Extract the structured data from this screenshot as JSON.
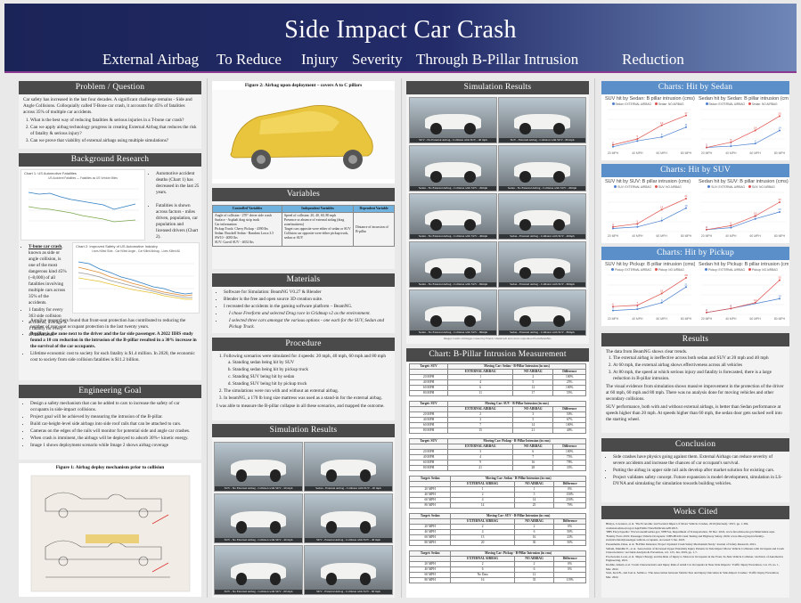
{
  "poster": {
    "title": "Side Impact Car Crash",
    "subtitle": [
      "External Airbag",
      "To Reduce",
      "Injury",
      "Severity",
      "Through B-Pillar Intrusion",
      "Reduction"
    ]
  },
  "problem": {
    "heading": "Problem / Question",
    "intro": "Car safety has increased in the last four decades. A significant challenge remains - Side and Angle Collisions. Colloquially called T-Bone car crash, it accounts for 45% of fatalities across 35% of multiple car accidents.",
    "items": [
      "What is the best way of reducing fatalities & serious injuries in a T-bone car crash?",
      "Can we apply airbag technology progress in creating External Airbag that reduces the risk of fatality & serious injury?",
      "Can we prove that viability of external airbags using multiple simulations?"
    ]
  },
  "background": {
    "heading": "Background Research",
    "chart1_title": "Chart 1: US Automotive Fatalities",
    "chart1_legend": "US Accident Fatalities — Fatalities as US Vehicle Miles",
    "chart2_title": "Chart 2: Improved Safety of US Automotive Industry",
    "chart2_legend": "Lives Killed Side - Car Killed Angle - Car Killed Airbag - Lives Killed All",
    "note1": "Automotive accident deaths (Chart 1) has decreased in the last 25 years.",
    "note2": "Fatalities is shown across factors - miles driven, population, car population and licensed drivers (Chart 2).",
    "tbone_lead": "T-bone car crash",
    "tbone_rest": ", known as side or angle collision, is one of the most dangerous kind 45% (~8,000) of all fatalities involving multiple cars across 35% of the accidents.",
    "cost": "1 fatality for every 363 side collision accidents, average is 1 fatality for every 478 accidents",
    "bullets": [
      "Autolive researchers found that front-seat protection has contributed to reducing the number of rear-seat occupant protection in the last twenty years.",
      "B-pillar is the zone next to the driver and the far side passenger. A 2022 IIHS study found a 10 cm reduction in the intrusion of the B-pillar resulted in a 30% increase in the survival of the car occupants.",
      "Lifetime economic cost to society for each fatality is $1.4 million. In 2020, the economic cost to society from side collision fatalities is $11.2 billion."
    ]
  },
  "goal": {
    "heading": "Engineering Goal",
    "items": [
      "Design a safety mechanism that can be added to cars to increase the safety of car occupants in side-impact collisions.",
      "Project goal will be achieved by measuring the intrusion of the B-pillar.",
      "Build car-height-level side airbags into side roof rails that can be attached to cars.",
      "Cameras on the edges of the rails will monitor for potential side and angle car crashes.",
      "When crash is imminent, the airbags will be deployed to adsorb 30%+ kinetic energy.",
      "Image 1 shows deployment scenario while Image 2 shows airbag coverage"
    ]
  },
  "fig1": {
    "caption": "Figure 1: Airbag deploy mechanism prior to collision"
  },
  "fig2": {
    "caption": "Figure 2: Airbag upon deployment – covers A to C pillars"
  },
  "variables": {
    "heading": "Variables",
    "headers": [
      "Controlled Variables",
      "Independent Variables",
      "Dependent Variable"
    ],
    "controlled": [
      "Angle of collision - 270° driver side crash",
      "Surface - Asphalt drag strip track",
      "Car information:",
      "Pickup Truck: Chevy Pickup - 4390 lbs",
      "Sedan: Bruckell Sedan - Random Lorca 3.5 SW10 - 4083 lbs",
      "SUV: Gavril SUV - 4652 lbs"
    ],
    "independent": [
      "Speed of collision: 20, 40, 60, 80 mph",
      "Presence or absence of external airbag (drag zone/mattress)",
      "Target cars opposite were either of sedan or SUV",
      "Collision car opposite were either pickup truck, sedan or SUV"
    ],
    "dependent": [
      "Distance of incursion of B-pillar"
    ]
  },
  "materials": {
    "heading": "Materials",
    "items": [
      "Software for Simulation: BeamNG V0.27 & Blender",
      "Blender is the free and open source 3D creation suite.",
      "I recreated the accidents in the gaming software platform – BeamNG.",
      "I chose Freeform and selected Drag race in Gridmap v2 as the environment.",
      "I selected three cars amongst the various options - one each for the SUV, Sedan and Pickup Truck."
    ]
  },
  "procedure": {
    "heading": "Procedure",
    "intro": "Following scenarios were simulated for 4 speeds: 20 mph, 40 mph, 60 mph and 80 mph",
    "subs": [
      "Standing sedan being hit by SUV",
      "Standing sedan being hit by pickup truck",
      "Standing SUV being hit by sedan",
      "Standing SUV being hit by pickup truck"
    ],
    "item2": "The simulations were run with and without an external airbag.",
    "item3": "In beamNG, a 170 lb long size mattress was used as a stand-in for the external airbag.",
    "closing": "I was able to measure the B-pillar collapse in all these scenarios, and mapped the outcome."
  },
  "sim_results": {
    "heading": "Simulation Results",
    "left_labels": [
      "SUV - No External Airbag - Collision with SUV - 20 mph",
      "Sedan - External Airbag - Collision with SUV - 20 mph",
      "SUV - No External Airbag - Collision with SUV - 40 mph",
      "SUV - External Airbag - Collision with SUV - 40 mph",
      "SUV - No External Airbag - Collision with SUV - 60 mph",
      "SUV - External Airbag - Collision with SUV - 60 mph"
    ],
    "right_labels": [
      "SUV - No External Airbag - Collision with SUV - 40 mph",
      "SUV - External Airbag - Collision with SUV - 80 mph",
      "Sedan - No External Airbag - Collision with SUV - 20mph",
      "Sedan - No External Airbag - Collision with SUV - 20mph",
      "Sedan - No External Airbag - Collision with SUV - 40mph",
      "Sedan - External Airbag - Collision with SUV - 40mph",
      "Sedan - No External Airbag - Collision with SUV - 60mph",
      "Sedan - External Airbag - Collision with SUV - 60mph",
      "Sedan - No External Airbag - Collision with SUV - 80mph",
      "Sedan - External Airbag - Collision with SUV - 80mph"
    ],
    "note": "Images Credit: all images created by Pranav Chaturvedi and can be reproduced from BeamNG."
  },
  "measurement": {
    "heading": "Chart: B-Pillar Intrusion Measurement",
    "cols": [
      "EXTERNAL AIRBAG",
      "NO AIRBAG",
      "Difference"
    ],
    "tables": [
      {
        "target": "Target: SUV",
        "moving": "Moving Car: Sedan - B-Pillar Intrusion (in cms)",
        "rows": [
          [
            "20 MPH",
            "1",
            "2",
            "100%"
          ],
          [
            "40 MPH",
            "4",
            "5",
            "25%"
          ],
          [
            "60 MPH",
            "6",
            "12",
            "100%"
          ],
          [
            "80 MPH",
            "11",
            "17",
            "55%"
          ]
        ]
      },
      {
        "target": "Target: SUV",
        "moving": "Moving Car: SUV - B-Pillar Intrusion (in cms)",
        "rows": [
          [
            "20 MPH",
            "2",
            "3",
            "50%"
          ],
          [
            "40 MPH",
            "3",
            "5",
            "67%"
          ],
          [
            "60 MPH",
            "7",
            "14",
            "100%"
          ],
          [
            "80 MPH",
            "15",
            "21",
            "40%"
          ]
        ]
      },
      {
        "target": "Target: SUV",
        "moving": "Moving Car: Pickup - B-Pillar Intrusion (in cms)",
        "rows": [
          [
            "20 MPH",
            "3",
            "6",
            "100%"
          ],
          [
            "40 MPH",
            "4",
            "7",
            "75%"
          ],
          [
            "60 MPH",
            "9",
            "16",
            "78%"
          ],
          [
            "80 MPH",
            "21",
            "28",
            "33%"
          ]
        ]
      },
      {
        "target": "Target: Sedan",
        "moving": "Moving Car: Sedan - B-Pillar Intrusion (in cms)",
        "rows": [
          [
            "20 MPH",
            "1",
            "1",
            "0%"
          ],
          [
            "40 MPH",
            "2",
            "5",
            "150%"
          ],
          [
            "60 MPH",
            "4",
            "14",
            "250%"
          ],
          [
            "80 MPH",
            "14",
            "25",
            "79%"
          ]
        ]
      },
      {
        "target": "Target: Sedan",
        "moving": "Moving Car: SUV - B-Pillar Intrusion (in cms)",
        "rows": [
          [
            "20 MPH",
            "2",
            "2",
            "0%"
          ],
          [
            "40 MPH",
            "4",
            "6",
            "50%"
          ],
          [
            "60 MPH",
            "13",
            "16",
            "23%"
          ],
          [
            "80 MPH",
            "20",
            "30",
            "50%"
          ]
        ]
      },
      {
        "target": "Target: Sedan",
        "moving": "Moving Car: Pickup - B-Pillar Intrusion (in cms)",
        "rows": [
          [
            "20 MPH",
            "2",
            "2",
            "0%"
          ],
          [
            "40 MPH",
            "6",
            "6",
            "0%"
          ],
          [
            "60 MPH",
            "No Data",
            "12",
            ""
          ],
          [
            "80 MPH",
            "16",
            "35",
            "119%"
          ]
        ]
      }
    ]
  },
  "charts_heads": [
    "Charts: Hit by Sedan",
    "Charts: Hit by SUV",
    "Charts: Hit by Pickup"
  ],
  "chart_data": [
    {
      "type": "line",
      "title": "SUV hit by Sedan: B pillar intrusion (cms)",
      "categories": [
        "20 MPH",
        "40 MPH",
        "60 MPH",
        "80 MPH"
      ],
      "series": [
        {
          "name": "Sedan: EXTERNAL AIRBAG",
          "values": [
            1,
            4,
            6,
            11
          ]
        },
        {
          "name": "Sedan: NO AIRBAG",
          "values": [
            2,
            5,
            12,
            17
          ]
        }
      ],
      "ylim": [
        0,
        20
      ]
    },
    {
      "type": "line",
      "title": "Sedan hit by Sedan: B pillar intrusion (cms)",
      "categories": [
        "20 MPH",
        "40 MPH",
        "60 MPH",
        "80 MPH"
      ],
      "series": [
        {
          "name": "Sedan: EXTERNAL AIRBAG",
          "values": [
            1,
            2,
            4,
            14
          ]
        },
        {
          "name": "Sedan: NO AIRBAG",
          "values": [
            1,
            5,
            14,
            25
          ]
        }
      ],
      "ylim": [
        0,
        30
      ]
    },
    {
      "type": "line",
      "title": "SUV hit by SUV: B pillar intrusion (cms)",
      "categories": [
        "20 MPH",
        "40 MPH",
        "60 MPH",
        "80 MPH"
      ],
      "series": [
        {
          "name": "SUV: EXTERNAL AIRBAG",
          "values": [
            2,
            3,
            7,
            15
          ]
        },
        {
          "name": "SUV: NO AIRBAG",
          "values": [
            3,
            5,
            14,
            21
          ]
        }
      ],
      "ylim": [
        0,
        25
      ]
    },
    {
      "type": "line",
      "title": "Sedan hit by SUV: B pillar intrusion (cms)",
      "categories": [
        "20 MPH",
        "40 MPH",
        "60 MPH",
        "80 MPH"
      ],
      "series": [
        {
          "name": "SUV: EXTERNAL AIRBAG",
          "values": [
            2,
            4,
            13,
            20
          ]
        },
        {
          "name": "SUV: NO AIRBAG",
          "values": [
            2,
            6,
            16,
            30
          ]
        }
      ],
      "ylim": [
        0,
        40
      ]
    },
    {
      "type": "line",
      "title": "SUV hit by Pickup: B pillar intrusion (cms)",
      "categories": [
        "20 MPH",
        "40 MPH",
        "60 MPH",
        "80 MPH"
      ],
      "series": [
        {
          "name": "Pickup: EXTERNAL AIRBAG",
          "values": [
            3,
            4,
            9,
            21
          ]
        },
        {
          "name": "Pickup: NO AIRBAG",
          "values": [
            6,
            7,
            16,
            28
          ]
        }
      ],
      "ylim": [
        0,
        30
      ]
    },
    {
      "type": "line",
      "title": "Sedan hit by Pickup: B pillar intrusion (cms)",
      "categories": [
        "20 MPH",
        "40 MPH",
        "60 MPH",
        "80 MPH"
      ],
      "series": [
        {
          "name": "Pickup: EXTERNAL AIRBAG",
          "values": [
            2,
            6,
            null,
            16
          ]
        },
        {
          "name": "Pickup: NO AIRBAG",
          "values": [
            2,
            6,
            12,
            35
          ]
        }
      ],
      "ylim": [
        0,
        40
      ]
    }
  ],
  "results": {
    "heading": "Results",
    "intro": "The data from BeamNG shows clear trends.",
    "items": [
      "The external airbag is ineffective across both sedan and SUV at 20 mph and 40 mph",
      "At 60 mph, the external airbag shows effectiveness across all vehicles",
      "At 80 mph, the speed at which serious injury and fatality is forecasted, there is a large reduction in B-pillar intrusion."
    ],
    "p1": "The visual evidence from simulation shows massive improvement in the protection of the driver at 60 mph, 60 mph and 80 mph. There was no analysis done for moving vehicles and other secondary collisions.",
    "p2": "SUV performance, both with and without external airbags, is better than Sedan performance at speeds higher than 20 mph. At speeds higher than 60 mph, the sedan door gets sucked well into the starting wheel."
  },
  "conclusion": {
    "heading": "Conclusion",
    "items": [
      "Side crashes have physics going against them. External Airbags can reduce severity of severe accidents and increase the chances of car occupant's survival.",
      "Putting the airbag in upper side rail aids develop after market solution for existing cars.",
      "Project validates safety concept. Future expansion is model development, simulation in LS-DYNA and simulating for simulation towards building vehicles."
    ]
  },
  "works": {
    "heading": "Works Cited",
    "refs": [
      "Bhaiya, Lawrence, et al. 'The Economic and Societal Impact of Motor Vehicle Crashes, 2010 (Revised).' 2015, pp. 1-304, crashstats.nhtsa.dot.gov/Api/Public/ViewPublication/812013.",
      "'IIHS Encyclopedia.' Www.Greenlivedata.gov, NHTSA, Department of Transportation, 30 Dec. 2022, www.fars.nhtsa.dot.gov/Main/index.aspx.",
      "'Fatality Facts 2019: Passenger Vehicle Occupants.' IIHS-HLDI Crash Testing and Highway Safety, 2020, www.iihs.org/topics/fatality-statistics/detail/passenger-vehicle-occupants. Accessed 5 Jan. 2023.",
      "Passenheim, Dana, et al. 'B-Pillar Intrusion: Project Updated Crash Safety Mechanism Study.' Journal of Safety Research, 2021.",
      "Sallam, Mundhir E., et al. 'Association of Increased Upper Extremity Injury Patterns in Side Impact Motor Vehicle Collisions with Occupant and Crash Characteristics.' Accident Analysis & Prevention, vol. 125, Jan. 2019, pp. 1-7.",
      "Prochowski, Leon, et al. 'Impact Energy and the Risk of Injury to Motorcar Occupants in the Front-To-Side Vehicle Collision.' Archives of Automotive Engineering, 2021.",
      "Dodiile, Ismail, et al. 'Crash Characteristics and Injury Risk of Adult Car Occupants in Near-Side Impacts.' Traffic Injury Prevention, vol. 23, no. 1, Mar. 2022.",
      "Stott, Keri B., and Joel A. Sellaloo. 'The Association between Vehicle Size and Injury Outcomes in Side-Impact Crashes.' Traffic Injury Prevention, Mar. 2022."
    ]
  }
}
